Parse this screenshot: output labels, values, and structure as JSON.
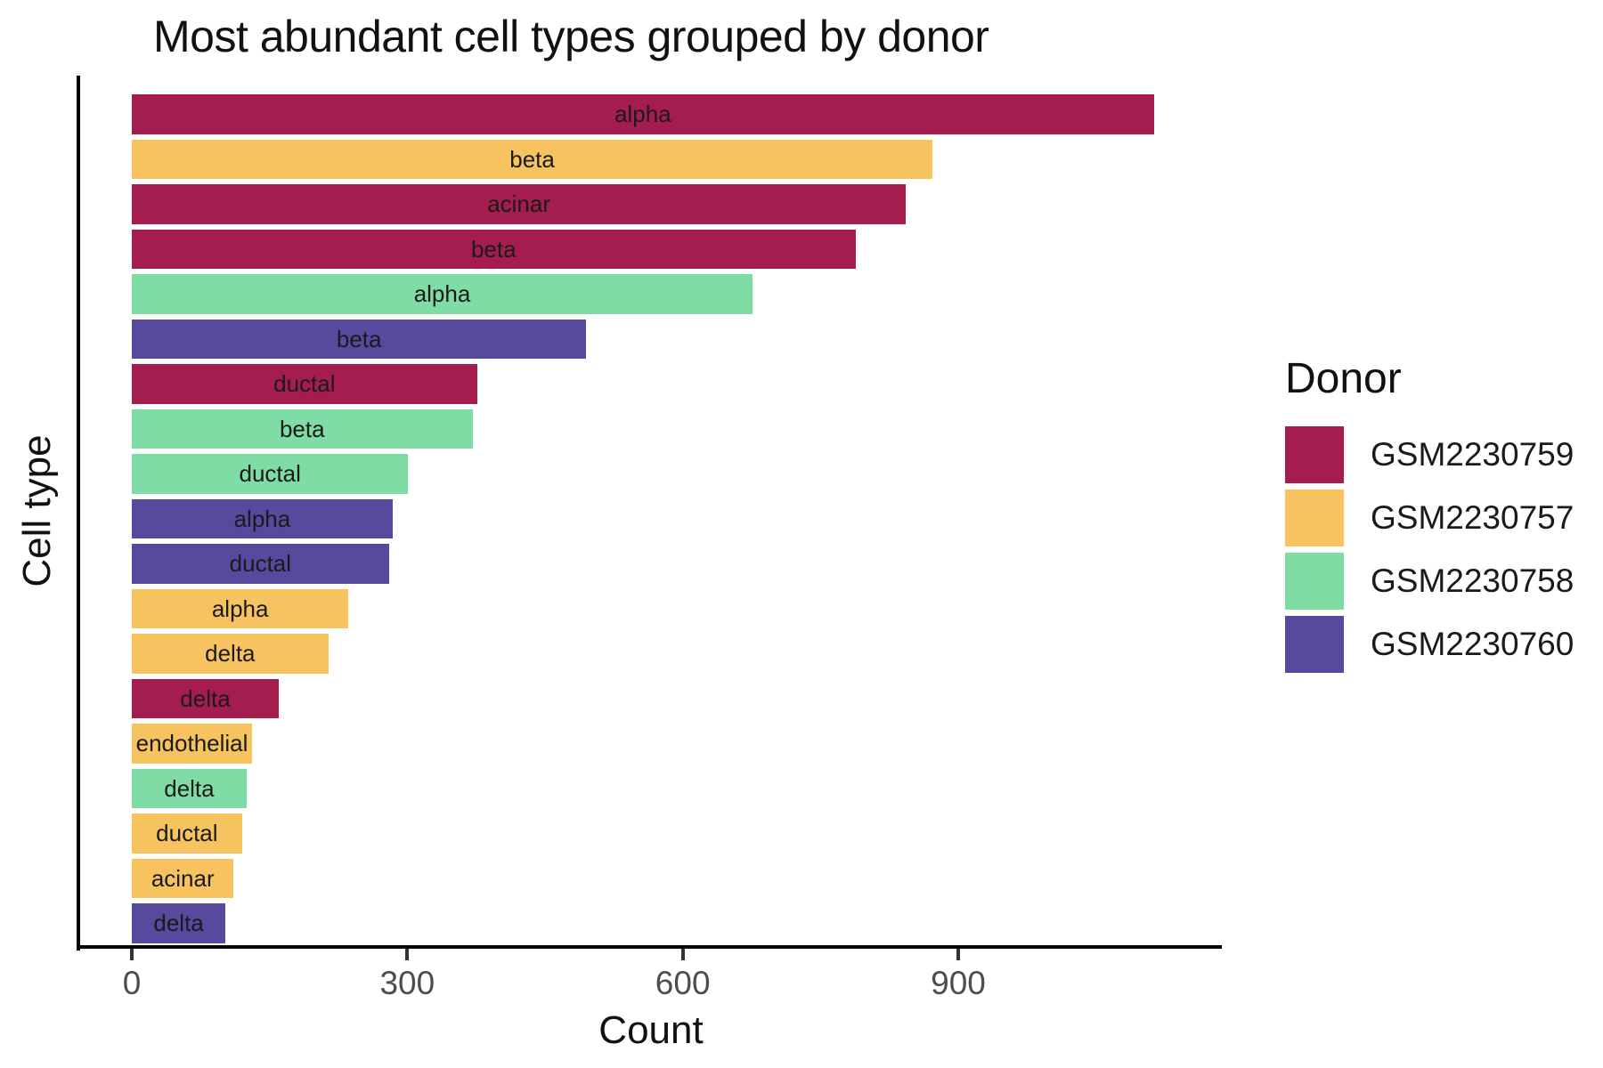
{
  "title": "Most abundant cell types grouped by donor",
  "chart_data": {
    "type": "bar",
    "orientation": "horizontal",
    "title": "Most abundant cell types grouped by donor",
    "xlabel": "Count",
    "ylabel": "Cell type",
    "xlim": [
      0,
      1190
    ],
    "xticks": [
      0,
      300,
      600,
      900
    ],
    "grid": false,
    "bar_label_note": "each bar is labeled inside with its cell type name",
    "legend": {
      "title": "Donor",
      "position": "right",
      "entries": [
        {
          "label": "GSM2230759",
          "color": "#A51C4E"
        },
        {
          "label": "GSM2230757",
          "color": "#F6C35F"
        },
        {
          "label": "GSM2230758",
          "color": "#7EDCA4"
        },
        {
          "label": "GSM2230760",
          "color": "#564A9E"
        }
      ]
    },
    "bars": [
      {
        "cell_type": "alpha",
        "donor": "GSM2230759",
        "count": 1113
      },
      {
        "cell_type": "beta",
        "donor": "GSM2230757",
        "count": 872
      },
      {
        "cell_type": "acinar",
        "donor": "GSM2230759",
        "count": 843
      },
      {
        "cell_type": "beta",
        "donor": "GSM2230759",
        "count": 788
      },
      {
        "cell_type": "alpha",
        "donor": "GSM2230758",
        "count": 676
      },
      {
        "cell_type": "beta",
        "donor": "GSM2230760",
        "count": 495
      },
      {
        "cell_type": "ductal",
        "donor": "GSM2230759",
        "count": 376
      },
      {
        "cell_type": "beta",
        "donor": "GSM2230758",
        "count": 371
      },
      {
        "cell_type": "ductal",
        "donor": "GSM2230758",
        "count": 301
      },
      {
        "cell_type": "alpha",
        "donor": "GSM2230760",
        "count": 284
      },
      {
        "cell_type": "ductal",
        "donor": "GSM2230760",
        "count": 280
      },
      {
        "cell_type": "alpha",
        "donor": "GSM2230757",
        "count": 236
      },
      {
        "cell_type": "delta",
        "donor": "GSM2230757",
        "count": 214
      },
      {
        "cell_type": "delta",
        "donor": "GSM2230759",
        "count": 160
      },
      {
        "cell_type": "endothelial",
        "donor": "GSM2230757",
        "count": 131
      },
      {
        "cell_type": "delta",
        "donor": "GSM2230758",
        "count": 125
      },
      {
        "cell_type": "ductal",
        "donor": "GSM2230757",
        "count": 120
      },
      {
        "cell_type": "acinar",
        "donor": "GSM2230757",
        "count": 111
      },
      {
        "cell_type": "delta",
        "donor": "GSM2230760",
        "count": 102
      }
    ]
  }
}
